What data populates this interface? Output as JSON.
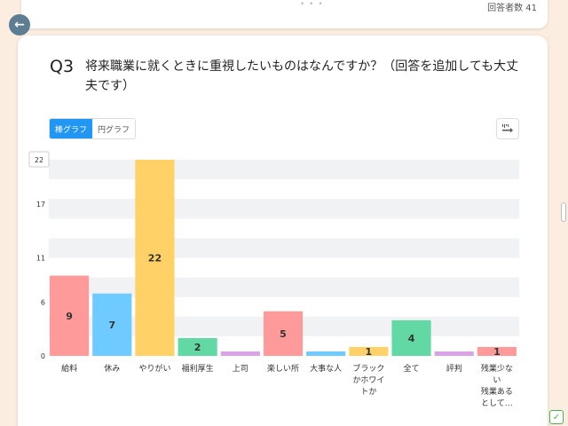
{
  "header": {
    "dots": "• • •",
    "respondents": "回答者数 41"
  },
  "question": {
    "number": "Q3",
    "text": "将来職業に就くときに重視したいものはなんですか？（回答を追加しても大丈夫です）"
  },
  "toggle": {
    "bar_label": "棒グラフ",
    "pie_label": "円グラフ",
    "selected": "bar"
  },
  "icons": {
    "back": "arrow-left-icon",
    "sort": "sort-icon",
    "corner": "check-icon"
  },
  "chart_data": {
    "type": "bar",
    "categories": [
      [
        "給料"
      ],
      [
        "休み"
      ],
      [
        "やりがい"
      ],
      [
        "福利厚生"
      ],
      [
        "上司"
      ],
      [
        "楽しい所"
      ],
      [
        "大事な人"
      ],
      [
        "ブラック",
        "かホワイ",
        "トか"
      ],
      [
        "全て"
      ],
      [
        "評判"
      ],
      [
        "残業少な",
        "い",
        "残業ある",
        "として…"
      ]
    ],
    "values": [
      9,
      7,
      22,
      2,
      0,
      5,
      0,
      1,
      4,
      0,
      1
    ],
    "data_labels": [
      "9",
      "7",
      "22",
      "2",
      "",
      "5",
      "",
      "1",
      "4",
      "",
      "1"
    ],
    "colors": [
      "#ff9a9a",
      "#6fcbff",
      "#ffd166",
      "#62d9a4",
      "#d9a4e6",
      "#ff9a9a",
      "#6fcbff",
      "#ffd166",
      "#62d9a4",
      "#d9a4e6",
      "#ff9a9a"
    ],
    "y_ticks": [
      "0",
      "6",
      "11",
      "17",
      "22"
    ],
    "y_max_label": "22",
    "ylim": [
      0,
      22
    ],
    "grid": true,
    "title": "",
    "xlabel": "",
    "ylabel": ""
  }
}
